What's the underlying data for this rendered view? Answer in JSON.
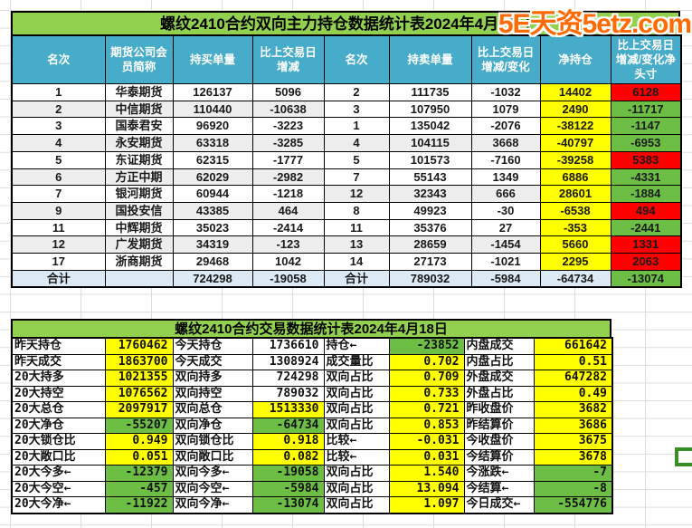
{
  "watermark": "5E天资5etz.com",
  "top_table": {
    "title": "螺纹2410合约双向主力持仓数据统计表2024年4月18日",
    "headers": [
      "名次",
      "期货公司会员简称",
      "持买单量",
      "比上交易日增减",
      "名次",
      "持卖单量",
      "比上交易日增减/变化",
      "净持仓",
      "比上交易日增减/变化净头寸"
    ],
    "rows": [
      [
        "1",
        "华泰期货",
        "126137",
        "5096",
        "2",
        "111735",
        "-1032",
        "14402",
        "6128"
      ],
      [
        "2",
        "中信期货",
        "110440",
        "-10638",
        "3",
        "107950",
        "1079",
        "2490",
        "-11717"
      ],
      [
        "3",
        "国泰君安",
        "96920",
        "-3223",
        "1",
        "135042",
        "-2076",
        "-38122",
        "-1147"
      ],
      [
        "4",
        "永安期货",
        "63318",
        "-3285",
        "4",
        "104115",
        "3668",
        "-40797",
        "-6953"
      ],
      [
        "5",
        "东证期货",
        "62315",
        "-1777",
        "5",
        "101573",
        "-7160",
        "-39258",
        "5383"
      ],
      [
        "6",
        "方正中期",
        "62029",
        "-2982",
        "7",
        "55143",
        "1349",
        "6886",
        "-4331"
      ],
      [
        "7",
        "银河期货",
        "60944",
        "-1218",
        "12",
        "32343",
        "666",
        "28601",
        "-1884"
      ],
      [
        "9",
        "国投安信",
        "43385",
        "464",
        "8",
        "49923",
        "-30",
        "-6538",
        "494"
      ],
      [
        "11",
        "中辉期货",
        "35023",
        "-2414",
        "11",
        "35376",
        "27",
        "-353",
        "-2441"
      ],
      [
        "12",
        "广发期货",
        "34319",
        "-123",
        "13",
        "28659",
        "-1454",
        "5660",
        "1331"
      ],
      [
        "17",
        "浙商期货",
        "29468",
        "1042",
        "14",
        "27173",
        "-1021",
        "2295",
        "2063"
      ]
    ],
    "total": [
      "合计",
      "",
      "724298",
      "-19058",
      "合计",
      "789032",
      "-5984",
      "-64734",
      "-13074"
    ]
  },
  "bottom_table": {
    "title": "螺纹2410合约交易数据统计表2024年4月18日",
    "rows": [
      [
        "昨天持仓",
        "1760462",
        "今天持仓",
        "1736610",
        "持仓←",
        "-23852",
        "内盘成交",
        "661642"
      ],
      [
        "昨天成交",
        "1863700",
        "今天成交",
        "1308924",
        "成交量比",
        "0.702",
        "内盘占比",
        "0.51"
      ],
      [
        "20大持多",
        "1021355",
        "双向持多",
        "724298",
        "双向占比",
        "0.709",
        "外盘成交",
        "647282"
      ],
      [
        "20大持空",
        "1076562",
        "双向持空",
        "789032",
        "双向占比",
        "0.733",
        "外盘占比",
        "0.49"
      ],
      [
        "20大总仓",
        "2097917",
        "双向总仓",
        "1513330",
        "双向占比",
        "0.721",
        "昨收盘价",
        "3682"
      ],
      [
        "20大净仓",
        "-55207",
        "双向净仓",
        "-64734",
        "双向占比",
        "0.853",
        "昨结算价",
        "3686"
      ],
      [
        "20大锁仓比",
        "0.949",
        "双向锁仓比",
        "0.918",
        "比较←",
        "-0.031",
        "今收盘价",
        "3675"
      ],
      [
        "20大敞口比",
        "0.051",
        "双向敞口比",
        "0.082",
        "比较←",
        "0.031",
        "今结算价",
        "3678"
      ],
      [
        "20大今多←",
        "-12379",
        "双向今多←",
        "-19058",
        "双向占比",
        "1.540",
        "今涨跌←",
        "-7"
      ],
      [
        "20大今空←",
        "-457",
        "双向今空←",
        "-5984",
        "双向占比",
        "13.094",
        "今结算←",
        "-8"
      ],
      [
        "20大今净←",
        "-11922",
        "双向今净←",
        "-13074",
        "双向占比",
        "1.097",
        "今日成交←",
        "-554776"
      ]
    ],
    "value_backgrounds": [
      [
        "y",
        "w",
        "g",
        "y"
      ],
      [
        "y",
        "w",
        "y",
        "y"
      ],
      [
        "y",
        "w",
        "y",
        "y"
      ],
      [
        "y",
        "w",
        "y",
        "y"
      ],
      [
        "y",
        "y",
        "y",
        "y"
      ],
      [
        "g",
        "g",
        "y",
        "y"
      ],
      [
        "y",
        "y",
        "y",
        "y"
      ],
      [
        "y",
        "y",
        "y",
        "y"
      ],
      [
        "g",
        "g",
        "y",
        "g"
      ],
      [
        "g",
        "g",
        "y",
        "g"
      ],
      [
        "g",
        "g",
        "y",
        "g"
      ]
    ],
    "gold_value_cells": [
      [
        2,
        0
      ],
      [
        3,
        0
      ]
    ]
  },
  "colors": {
    "title_green": "#92D050",
    "header_teal": "#47ACC9",
    "cell_yellow": "#FFFF00",
    "cell_red": "#FF0000",
    "cell_green": "#6DBE45",
    "text_red": "#FF0000",
    "text_green": "#00A550",
    "text_gold": "#BF9000",
    "total_row_blue": "#DCEAF5",
    "band_gray": "#EDEDED",
    "watermark_orange": "#FF6A00",
    "selection_green": "#3A8E28"
  }
}
